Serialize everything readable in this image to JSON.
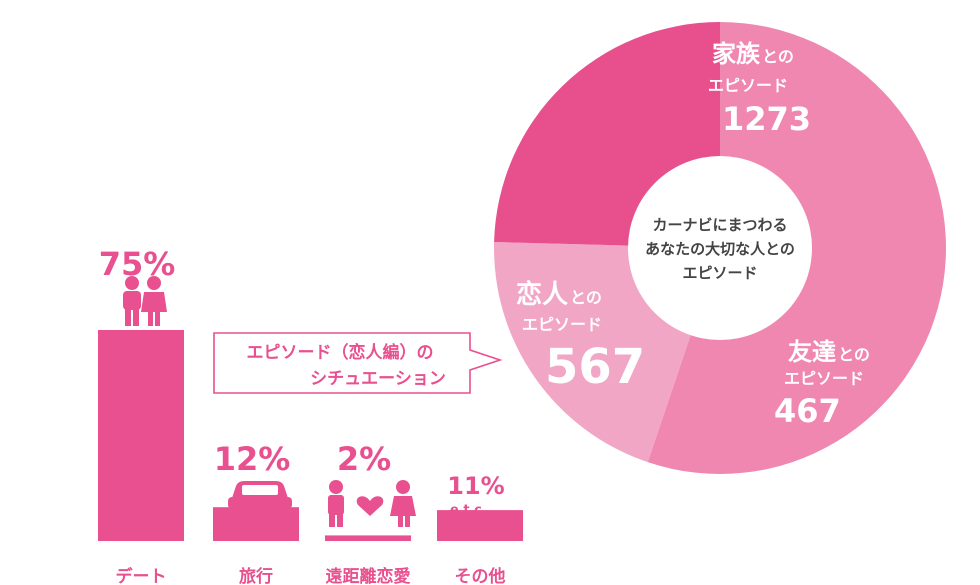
{
  "chart_data": [
    {
      "type": "bar",
      "categories": [
        "デート",
        "旅行",
        "遠距離恋愛",
        "その他"
      ],
      "values": [
        75,
        12,
        2,
        11
      ],
      "value_labels": [
        "75%",
        "12%",
        "2%",
        "11%"
      ],
      "extra_label": "e t c.",
      "ylim": [
        0,
        75
      ],
      "callout": [
        "エピソード（恋人編）の",
        "シチュエーション"
      ],
      "color": "#e8508f"
    },
    {
      "type": "pie",
      "center_text": [
        "カーナビにまつわる",
        "あなたの大切な人との",
        "エピソード"
      ],
      "slices": [
        {
          "label": "家族とのエピソード",
          "name_big": "家族",
          "name_small": "との",
          "sub": "エピソード",
          "value_text": "1273",
          "value": 1273,
          "color": "#ef87b1"
        },
        {
          "label": "友達とのエピソード",
          "name_big": "友達",
          "name_small": "との",
          "sub": "エピソード",
          "value_text": "467",
          "value": 467,
          "color": "#f2a6c6"
        },
        {
          "label": "恋人とのエピソード",
          "name_big": "恋人",
          "name_small": "との",
          "sub": "エピソード",
          "value_text": "567",
          "value": 567,
          "color": "#e7508d"
        }
      ]
    }
  ]
}
